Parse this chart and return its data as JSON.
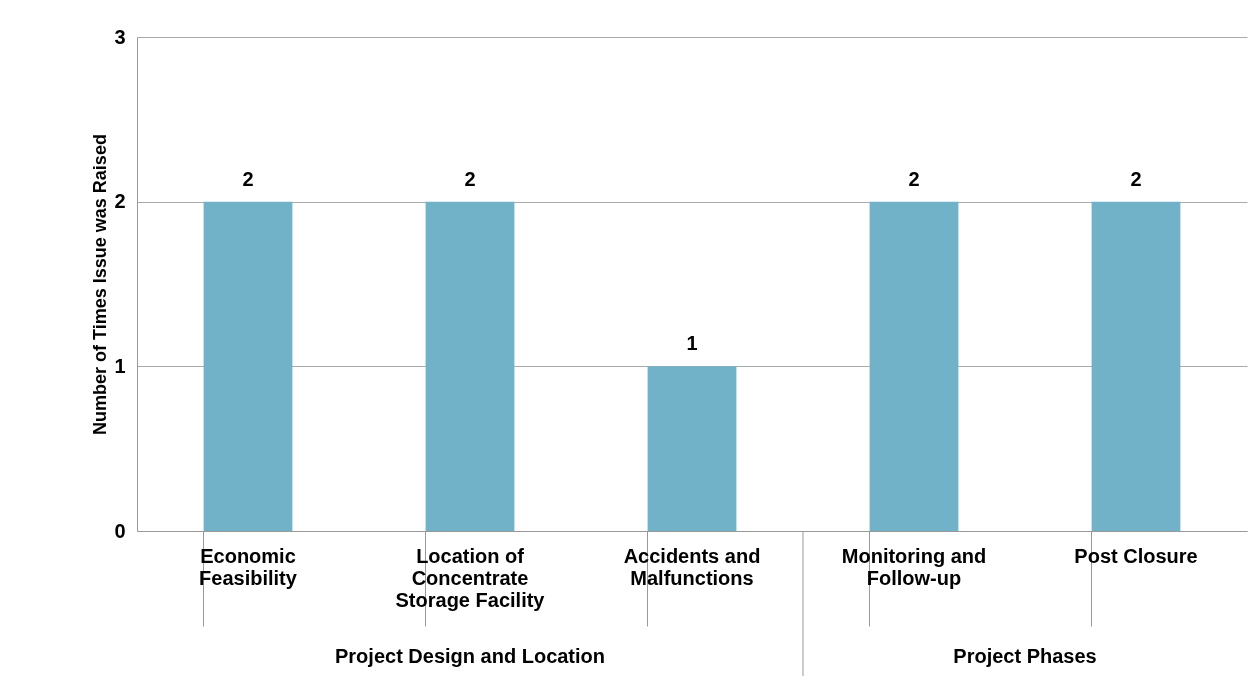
{
  "chart_data": {
    "type": "bar",
    "ylabel": "Number of Times Issue was Raised",
    "categories": [
      "Economic Feasibility",
      "Location of Concentrate Storage Facility",
      "Accidents and Malfunctions",
      "Monitoring and Follow-up",
      "Post Closure"
    ],
    "values": [
      2,
      2,
      1,
      2,
      2
    ],
    "color": "#72b2c9",
    "ylim": [
      0,
      3
    ],
    "yticks": [
      0,
      1,
      2,
      3
    ],
    "grid": "y",
    "data_labels": true,
    "annotations": [
      "Project Design and Location",
      "Project Phases"
    ]
  }
}
